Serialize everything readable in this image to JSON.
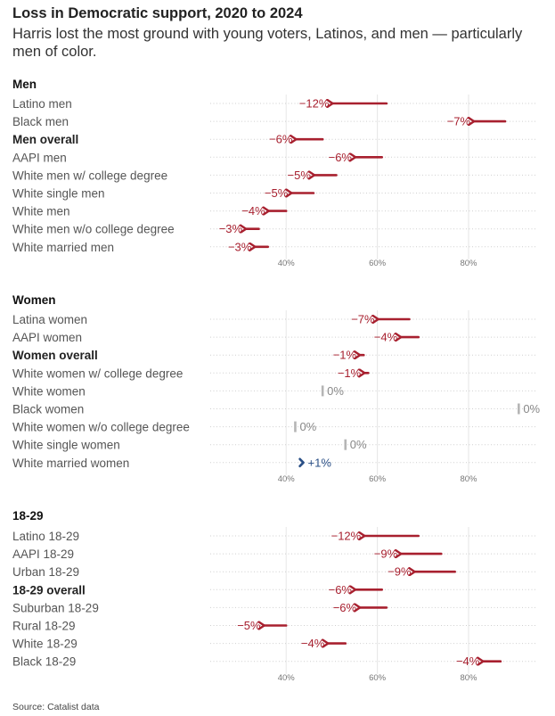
{
  "title": "Loss in Democratic support, 2020 to 2024",
  "subtitle": "Harris lost the most ground with young voters, Latinos, and men — particularly men of color.",
  "source": "Source: Catalist data",
  "colors": {
    "loss": "#a8202f",
    "gain": "#2a4f86",
    "neutral": "#aaaaaa",
    "grid": "#e6e6e6",
    "dots": "#cfcfcf"
  },
  "chart_data": [
    {
      "type": "arrow",
      "title": "Men",
      "x_unit": "Democratic two-party vote share (%)",
      "xlim": [
        30,
        92
      ],
      "ticks": [
        40,
        60,
        80
      ],
      "tick_labels": [
        "40%",
        "60%",
        "80%"
      ],
      "rows": [
        {
          "label": "Latino men",
          "bold": false,
          "from": 62,
          "to": 50,
          "change_label": "−12%"
        },
        {
          "label": "Black men",
          "bold": false,
          "from": 88,
          "to": 81,
          "change_label": "−7%"
        },
        {
          "label": "Men overall",
          "bold": true,
          "from": 48,
          "to": 42,
          "change_label": "−6%"
        },
        {
          "label": "AAPI men",
          "bold": false,
          "from": 61,
          "to": 55,
          "change_label": "−6%"
        },
        {
          "label": "White men w/ college degree",
          "bold": false,
          "from": 51,
          "to": 46,
          "change_label": "−5%"
        },
        {
          "label": "White single men",
          "bold": false,
          "from": 46,
          "to": 41,
          "change_label": "−5%"
        },
        {
          "label": "White men",
          "bold": false,
          "from": 40,
          "to": 36,
          "change_label": "−4%"
        },
        {
          "label": "White men w/o college degree",
          "bold": false,
          "from": 34,
          "to": 31,
          "change_label": "−3%"
        },
        {
          "label": "White married men",
          "bold": false,
          "from": 36,
          "to": 33,
          "change_label": "−3%"
        }
      ]
    },
    {
      "type": "arrow",
      "title": "Women",
      "x_unit": "Democratic two-party vote share (%)",
      "xlim": [
        30,
        92
      ],
      "ticks": [
        40,
        60,
        80
      ],
      "tick_labels": [
        "40%",
        "60%",
        "80%"
      ],
      "rows": [
        {
          "label": "Latina women",
          "bold": false,
          "from": 67,
          "to": 60,
          "change_label": "−7%"
        },
        {
          "label": "AAPI women",
          "bold": false,
          "from": 69,
          "to": 65,
          "change_label": "−4%"
        },
        {
          "label": "Women overall",
          "bold": true,
          "from": 57,
          "to": 56,
          "change_label": "−1%"
        },
        {
          "label": "White women w/ college degree",
          "bold": false,
          "from": 58,
          "to": 57,
          "change_label": "−1%"
        },
        {
          "label": "White women",
          "bold": false,
          "from": 48,
          "to": 48,
          "change_label": "0%"
        },
        {
          "label": "Black women",
          "bold": false,
          "from": 91,
          "to": 91,
          "change_label": "0%"
        },
        {
          "label": "White women w/o college degree",
          "bold": false,
          "from": 42,
          "to": 42,
          "change_label": "0%"
        },
        {
          "label": "White single women",
          "bold": false,
          "from": 53,
          "to": 53,
          "change_label": "0%"
        },
        {
          "label": "White married women",
          "bold": false,
          "from": 43,
          "to": 44,
          "change_label": "+1%"
        }
      ]
    },
    {
      "type": "arrow",
      "title": "18-29",
      "x_unit": "Democratic two-party vote share (%)",
      "xlim": [
        30,
        92
      ],
      "ticks": [
        40,
        60,
        80
      ],
      "tick_labels": [
        "40%",
        "60%",
        "80%"
      ],
      "rows": [
        {
          "label": "Latino 18-29",
          "bold": false,
          "from": 69,
          "to": 57,
          "change_label": "−12%"
        },
        {
          "label": "AAPI 18-29",
          "bold": false,
          "from": 74,
          "to": 65,
          "change_label": "−9%"
        },
        {
          "label": "Urban 18-29",
          "bold": false,
          "from": 77,
          "to": 68,
          "change_label": "−9%"
        },
        {
          "label": "18-29 overall",
          "bold": true,
          "from": 61,
          "to": 55,
          "change_label": "−6%"
        },
        {
          "label": "Suburban 18-29",
          "bold": false,
          "from": 62,
          "to": 56,
          "change_label": "−6%"
        },
        {
          "label": "Rural 18-29",
          "bold": false,
          "from": 40,
          "to": 35,
          "change_label": "−5%"
        },
        {
          "label": "White 18-29",
          "bold": false,
          "from": 53,
          "to": 49,
          "change_label": "−4%"
        },
        {
          "label": "Black 18-29",
          "bold": false,
          "from": 87,
          "to": 83,
          "change_label": "−4%"
        }
      ]
    }
  ]
}
